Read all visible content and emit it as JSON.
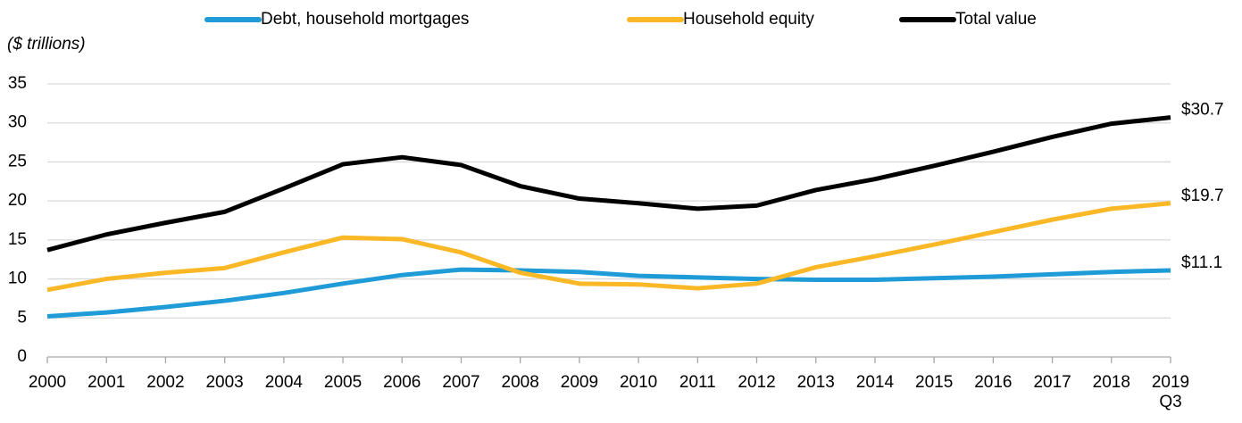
{
  "chart_data": {
    "type": "line",
    "y_label": "($ trillions)",
    "categories": [
      "2000",
      "2001",
      "2002",
      "2003",
      "2004",
      "2005",
      "2006",
      "2007",
      "2008",
      "2009",
      "2010",
      "2011",
      "2012",
      "2013",
      "2014",
      "2015",
      "2016",
      "2017",
      "2018",
      "2019\nQ3"
    ],
    "series": [
      {
        "name": "Debt, household mortgages",
        "color": "#1f9bd7",
        "values": [
          5.2,
          5.7,
          6.4,
          7.2,
          8.2,
          9.4,
          10.5,
          11.2,
          11.1,
          10.9,
          10.4,
          10.2,
          10.0,
          9.9,
          9.9,
          10.1,
          10.3,
          10.6,
          10.9,
          11.1
        ],
        "value_labels": [
          null,
          null,
          null,
          null,
          null,
          null,
          null,
          null,
          null,
          null,
          null,
          null,
          null,
          null,
          null,
          null,
          null,
          null,
          null,
          "$11.1"
        ]
      },
      {
        "name": "Household equity",
        "color": "#fbb826",
        "values": [
          8.6,
          10.0,
          10.8,
          11.4,
          13.4,
          15.3,
          15.1,
          13.4,
          10.8,
          9.4,
          9.3,
          8.8,
          9.4,
          11.5,
          12.9,
          14.4,
          16.0,
          17.6,
          19.0,
          19.7
        ],
        "value_labels": [
          null,
          null,
          null,
          null,
          null,
          null,
          null,
          null,
          null,
          null,
          null,
          null,
          null,
          null,
          null,
          null,
          null,
          null,
          null,
          "$19.7"
        ]
      },
      {
        "name": "Total value",
        "color": "#000000",
        "values": [
          13.7,
          15.7,
          17.2,
          18.6,
          21.6,
          24.7,
          25.6,
          24.6,
          21.9,
          20.3,
          19.7,
          19.0,
          19.4,
          21.4,
          22.8,
          24.5,
          26.3,
          28.2,
          29.9,
          30.7
        ],
        "value_labels": [
          null,
          null,
          null,
          null,
          null,
          null,
          null,
          null,
          null,
          null,
          null,
          null,
          null,
          null,
          null,
          null,
          null,
          null,
          null,
          "$30.7"
        ]
      }
    ],
    "ylim": [
      0,
      35
    ],
    "yticks": [
      0,
      5,
      10,
      15,
      20,
      25,
      30,
      35
    ],
    "grid": true
  }
}
